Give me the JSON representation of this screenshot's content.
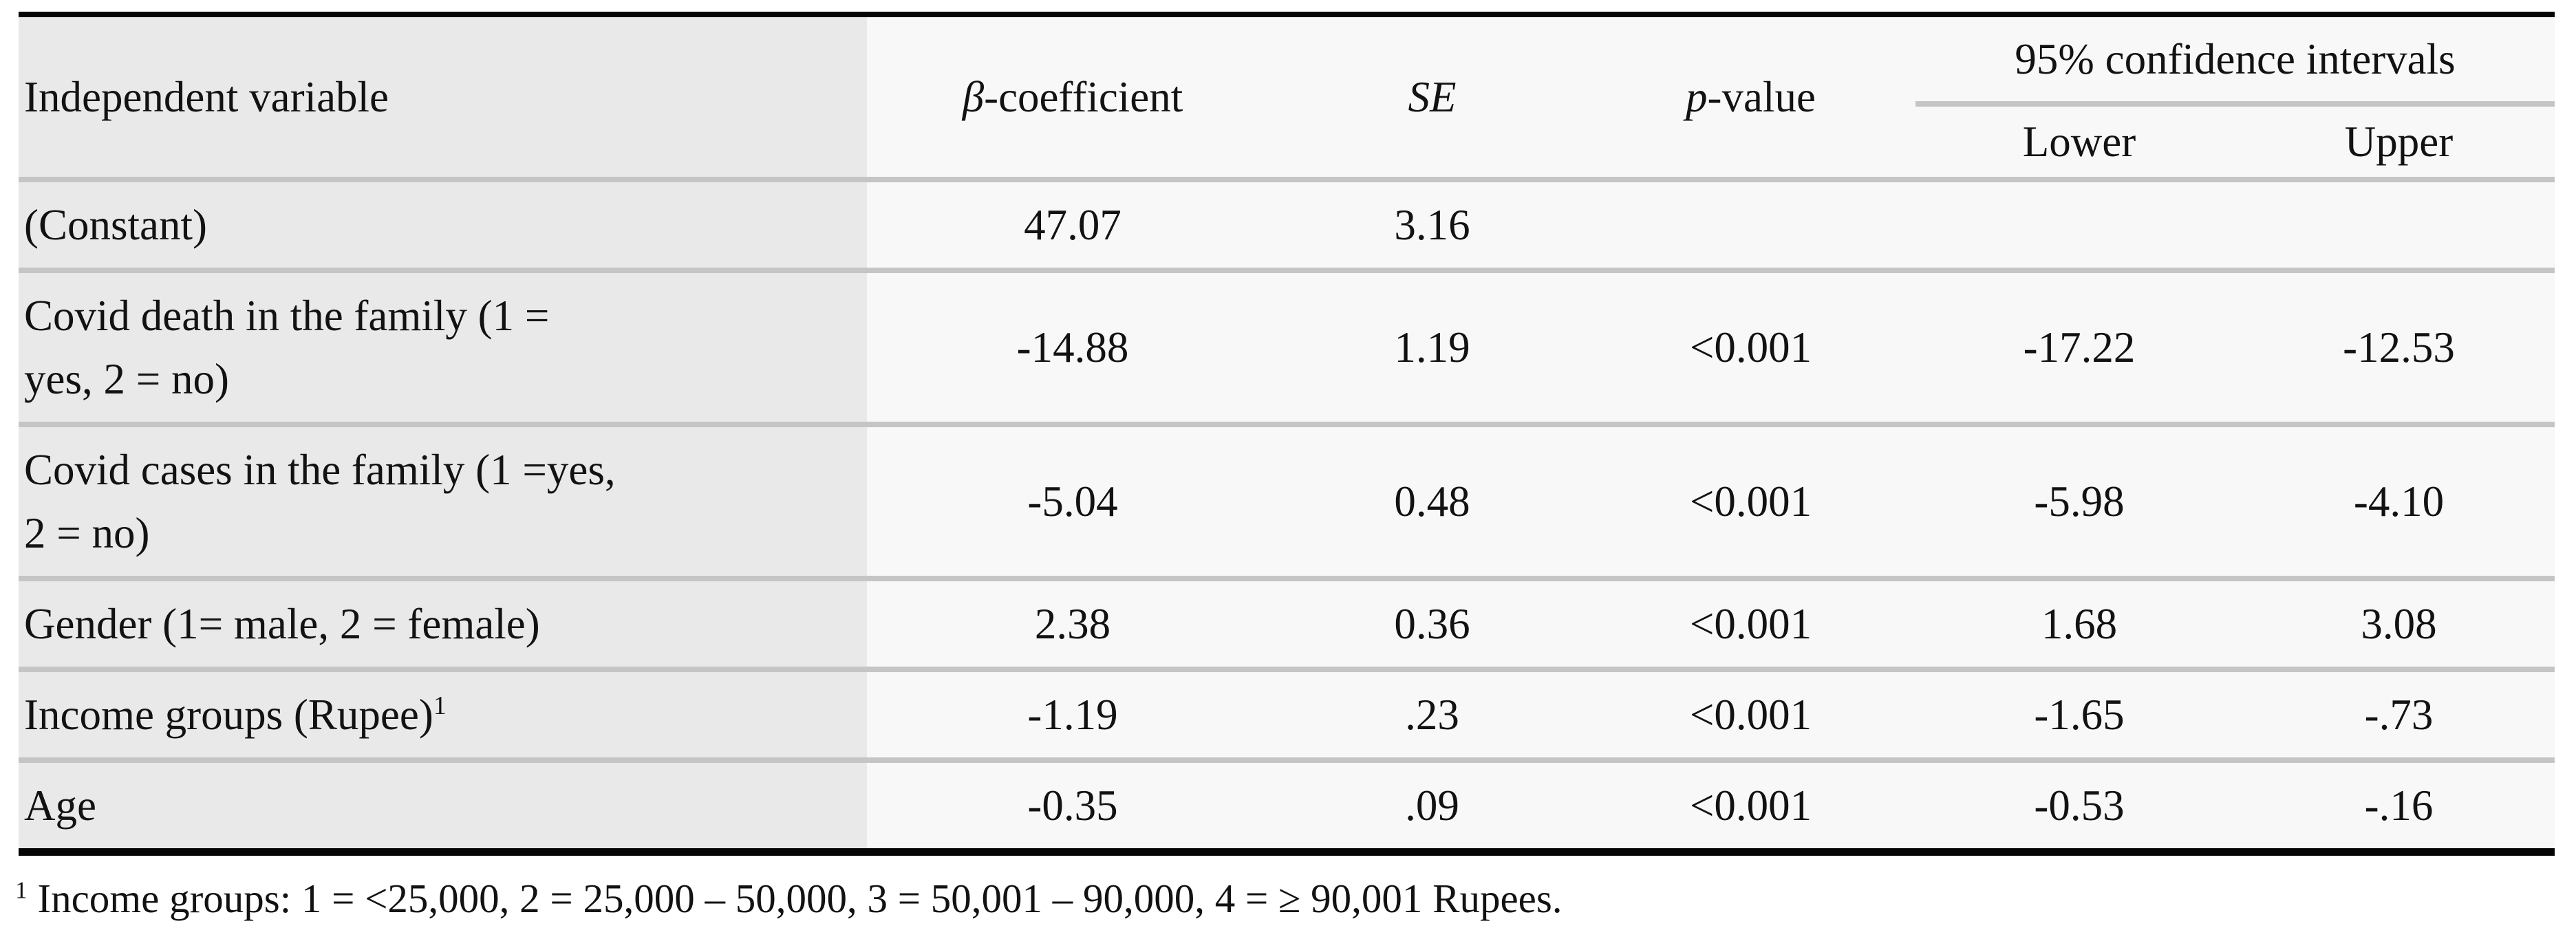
{
  "table": {
    "header": {
      "variable": "Independent variable",
      "beta": {
        "italic": "β",
        "rest": "-coefficient"
      },
      "se": "SE",
      "p": {
        "italic": "p",
        "rest": "-value"
      },
      "ci_group": "95% confidence intervals",
      "ci_lower": "Lower",
      "ci_upper": "Upper"
    },
    "rows": [
      {
        "variable": "(Constant)",
        "variable_sup": "",
        "beta": "47.07",
        "se": "3.16",
        "p": "",
        "lower": "",
        "upper": ""
      },
      {
        "variable": "Covid death in the family (1 =\nyes, 2 = no)",
        "variable_sup": "",
        "beta": "-14.88",
        "se": "1.19",
        "p": "<0.001",
        "lower": "-17.22",
        "upper": "-12.53"
      },
      {
        "variable": "Covid cases in the family (1 =yes,\n2 = no)",
        "variable_sup": "",
        "beta": "-5.04",
        "se": "0.48",
        "p": "<0.001",
        "lower": "-5.98",
        "upper": "-4.10"
      },
      {
        "variable": "Gender (1= male, 2 = female)",
        "variable_sup": "",
        "beta": "2.38",
        "se": "0.36",
        "p": "<0.001",
        "lower": "1.68",
        "upper": "3.08"
      },
      {
        "variable": "Income groups (Rupee)",
        "variable_sup": "1",
        "beta": "-1.19",
        "se": ".23",
        "p": "<0.001",
        "lower": "-1.65",
        "upper": "-.73"
      },
      {
        "variable": "Age",
        "variable_sup": "",
        "beta": "-0.35",
        "se": ".09",
        "p": "<0.001",
        "lower": "-0.53",
        "upper": "-.16"
      }
    ],
    "footnote": {
      "sup": "1",
      "text": " Income groups: 1 = <25,000, 2 = 25,000 – 50,000, 3 = 50,001 – 90,000, 4 = ≥ 90,001 Rupees."
    },
    "colors": {
      "first_column_bg": "#e9e9e9",
      "data_column_bg": "#f8f8f9",
      "row_separator": "#c5c5c5",
      "rule": "#050505"
    }
  }
}
